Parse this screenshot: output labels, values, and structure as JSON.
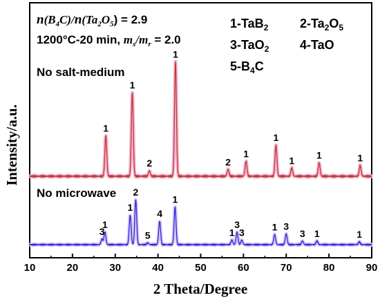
{
  "chart_data": {
    "type": "line",
    "xlabel": "2 Theta/Degree",
    "ylabel": "Intensity/a.u.",
    "xlim": [
      10,
      90
    ],
    "xticks": [
      "10",
      "20",
      "30",
      "40",
      "50",
      "60",
      "70",
      "80",
      "90"
    ],
    "y_ticks_shown": false,
    "grid": false,
    "condition_line1": {
      "p1": "n",
      "p2": "(B",
      "p3": "4",
      "p4": "C)/",
      "p5": "n",
      "p6": "(Ta",
      "p7": "2",
      "p8": "O",
      "p9": "5",
      "p10": ") = 2.9"
    },
    "condition_line2": {
      "p1": "1200°C-20 min, ",
      "p2": "m",
      "p3": "s",
      "p4": "/",
      "p5": "m",
      "p6": "r",
      "p7": " = 2.0"
    },
    "phase_legend": [
      {
        "num": "1-TaB",
        "sub": "2"
      },
      {
        "num": "2-Ta",
        "sub": "2",
        "rest": "O",
        "sub2": "5"
      },
      {
        "num": "3-TaO",
        "sub": "2"
      },
      {
        "num": "4-TaO"
      },
      {
        "num": "5-B",
        "sub": "4",
        "rest": "C"
      }
    ],
    "series": [
      {
        "name": "No salt-medium",
        "color": "#c0392b",
        "shadow": "#f4b6d6",
        "baseline": 0.0,
        "peaks": [
          {
            "x": 27.8,
            "h": 0.3,
            "label": "1"
          },
          {
            "x": 34.0,
            "h": 0.62,
            "label": "1"
          },
          {
            "x": 38.0,
            "h": 0.04,
            "label": "2"
          },
          {
            "x": 44.1,
            "h": 0.85,
            "label": "1"
          },
          {
            "x": 56.4,
            "h": 0.05,
            "label": "2"
          },
          {
            "x": 60.6,
            "h": 0.11,
            "label": "1"
          },
          {
            "x": 67.6,
            "h": 0.23,
            "label": "1"
          },
          {
            "x": 71.3,
            "h": 0.06,
            "label": "1"
          },
          {
            "x": 77.7,
            "h": 0.1,
            "label": "1"
          },
          {
            "x": 87.3,
            "h": 0.08,
            "label": "1"
          }
        ]
      },
      {
        "name": "No microwave",
        "color": "#2a2ad6",
        "shadow": "#d8c6f6",
        "baseline": 0.0,
        "peaks": [
          {
            "x": 26.9,
            "h": 0.06,
            "label": "3"
          },
          {
            "x": 27.6,
            "h": 0.14,
            "label": "1"
          },
          {
            "x": 33.5,
            "h": 0.33,
            "label": "1"
          },
          {
            "x": 34.8,
            "h": 0.5,
            "label": "2"
          },
          {
            "x": 37.6,
            "h": 0.02,
            "label": "5"
          },
          {
            "x": 40.4,
            "h": 0.26,
            "label": "4"
          },
          {
            "x": 44.0,
            "h": 0.42,
            "label": "1"
          },
          {
            "x": 57.3,
            "h": 0.05,
            "label": "1"
          },
          {
            "x": 58.5,
            "h": 0.14,
            "label": "3"
          },
          {
            "x": 59.6,
            "h": 0.05,
            "label": "3"
          },
          {
            "x": 67.3,
            "h": 0.11,
            "label": "1"
          },
          {
            "x": 70.0,
            "h": 0.12,
            "label": "3"
          },
          {
            "x": 73.8,
            "h": 0.04,
            "label": "3"
          },
          {
            "x": 77.2,
            "h": 0.04,
            "label": "1"
          },
          {
            "x": 87.1,
            "h": 0.03,
            "label": "1"
          }
        ]
      }
    ]
  }
}
